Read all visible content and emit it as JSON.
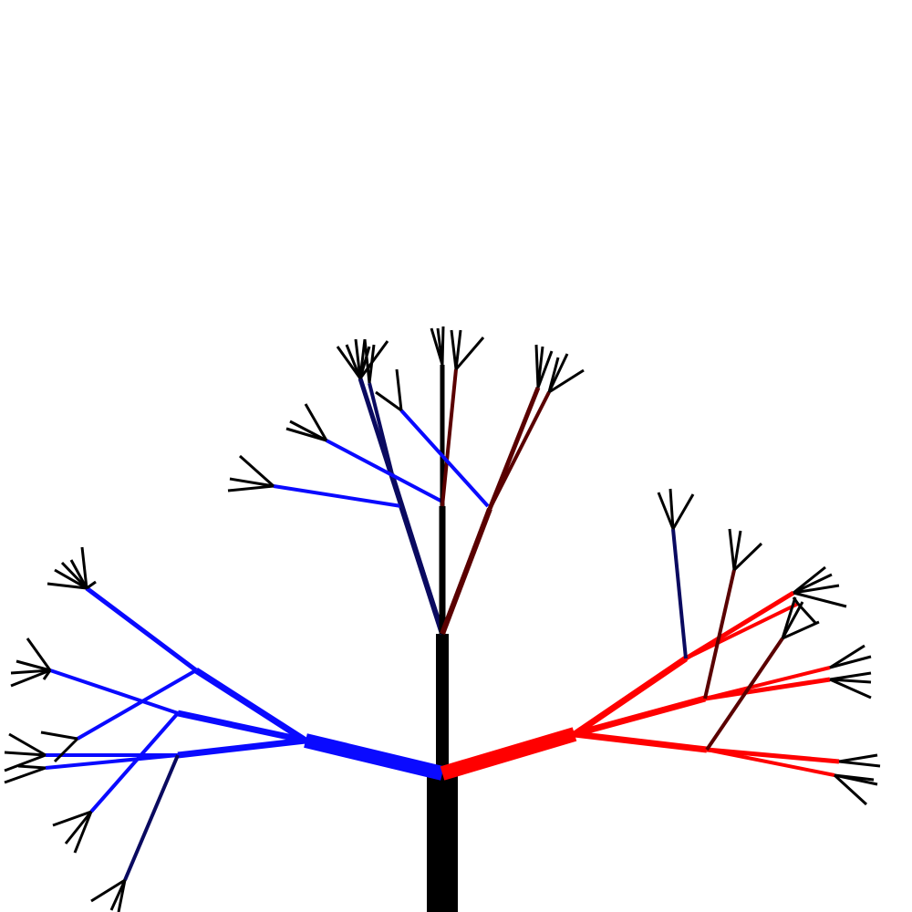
{
  "diagram": {
    "kind": "fractal-tree",
    "labels": [],
    "colors": {
      "background": "#ffffff",
      "trunk": "#000000",
      "left_branch": "#0a0aff",
      "right_branch": "#ff0000",
      "tips": "#000000",
      "dark_blue": "#0a0a60",
      "dark_red": "#5a0000"
    }
  }
}
